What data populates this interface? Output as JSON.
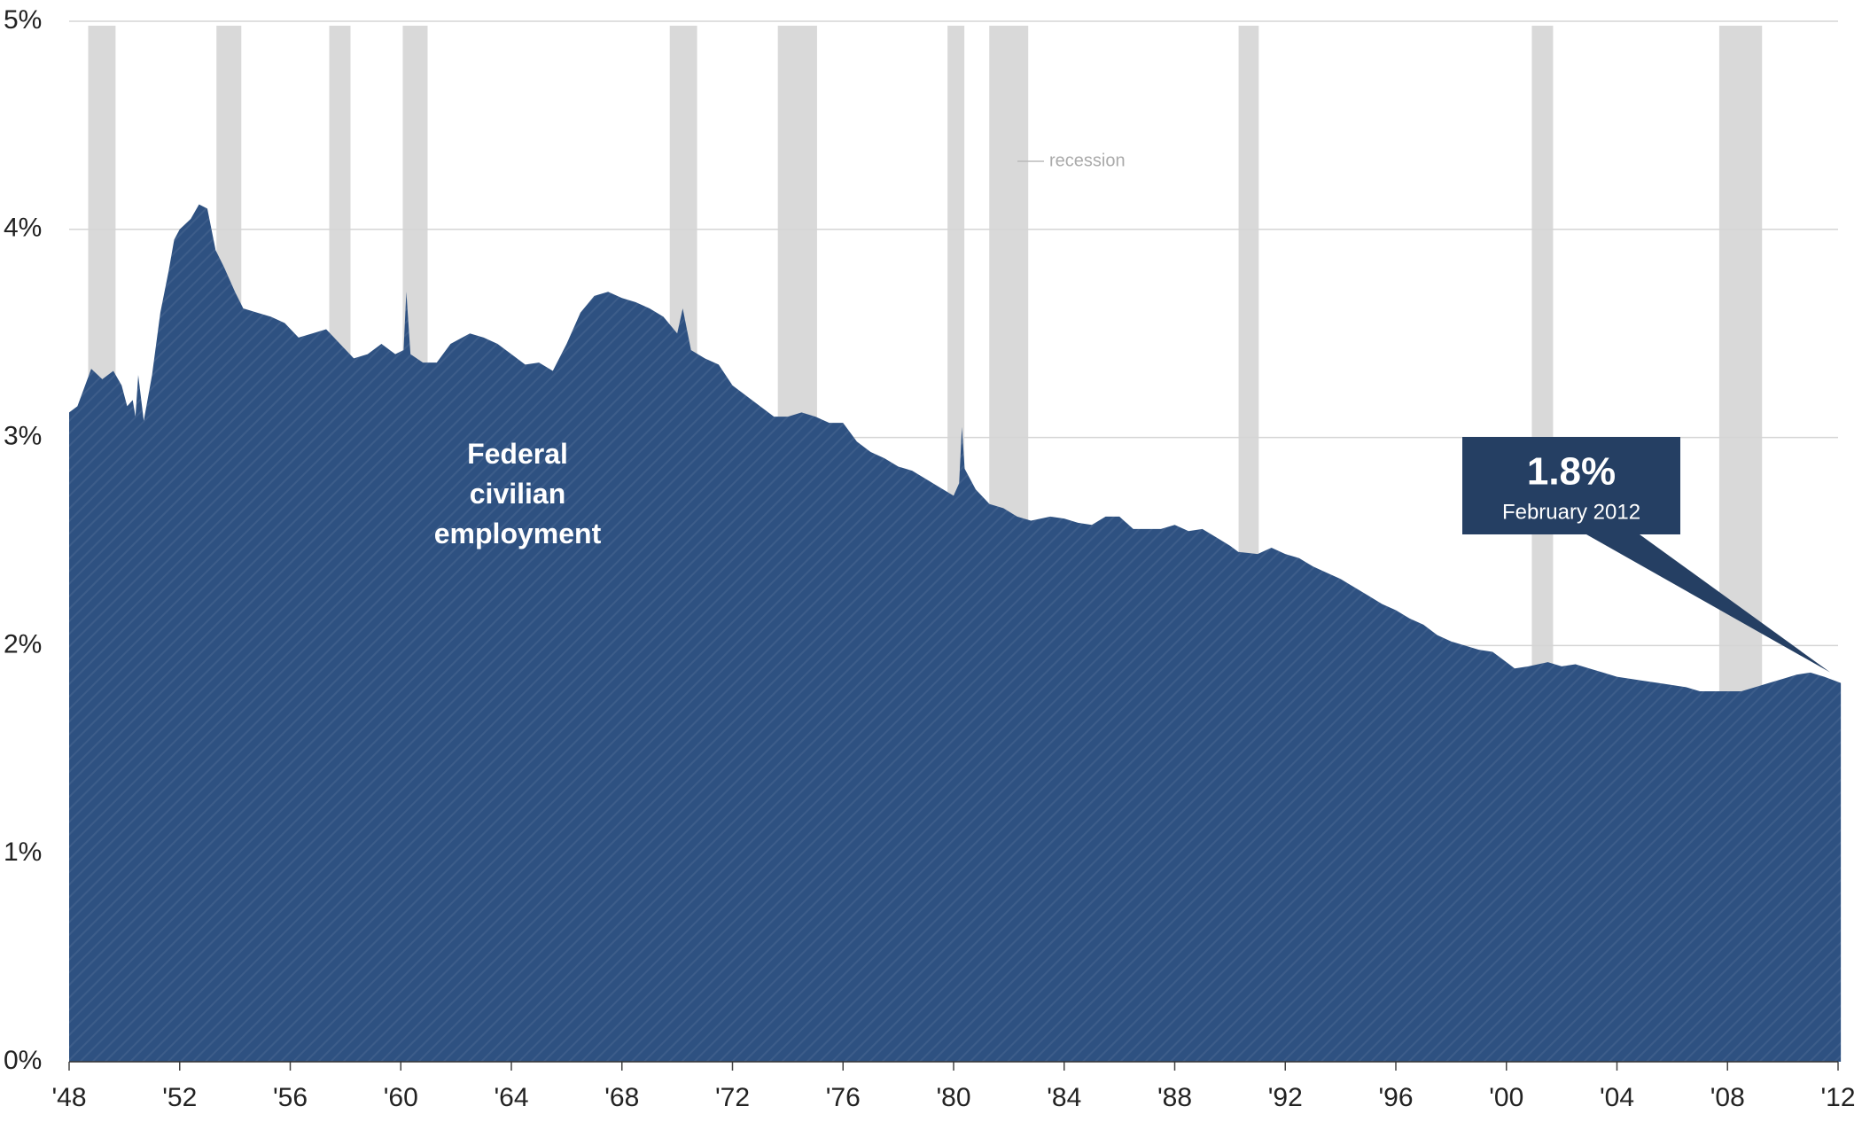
{
  "chart_data": {
    "type": "area",
    "x": [
      1948.0,
      1948.3,
      1948.8,
      1949.2,
      1949.6,
      1949.9,
      1950.1,
      1950.3,
      1950.4,
      1950.5,
      1950.7,
      1951.0,
      1951.3,
      1951.6,
      1951.8,
      1952.0,
      1952.4,
      1952.7,
      1953.0,
      1953.3,
      1953.6,
      1954.0,
      1954.3,
      1954.8,
      1955.3,
      1955.8,
      1956.3,
      1956.8,
      1957.3,
      1957.8,
      1958.3,
      1958.8,
      1959.3,
      1959.8,
      1960.1,
      1960.2,
      1960.35,
      1960.8,
      1961.3,
      1961.8,
      1962.5,
      1963.0,
      1963.5,
      1964.0,
      1964.5,
      1965.0,
      1965.5,
      1966.0,
      1966.5,
      1967.0,
      1967.5,
      1968.0,
      1968.5,
      1969.0,
      1969.5,
      1970.0,
      1970.2,
      1970.5,
      1971.0,
      1971.5,
      1972.0,
      1972.5,
      1973.0,
      1973.5,
      1974.0,
      1974.5,
      1975.0,
      1975.5,
      1976.0,
      1976.5,
      1977.0,
      1977.5,
      1978.0,
      1978.5,
      1979.0,
      1979.5,
      1980.0,
      1980.2,
      1980.3,
      1980.4,
      1980.8,
      1981.3,
      1981.8,
      1982.3,
      1982.8,
      1983.5,
      1984.0,
      1984.5,
      1985.0,
      1985.5,
      1986.0,
      1986.5,
      1987.0,
      1987.5,
      1988.0,
      1988.5,
      1989.0,
      1989.5,
      1990.0,
      1990.3,
      1991.0,
      1991.5,
      1992.0,
      1992.5,
      1993.0,
      1993.5,
      1994.0,
      1994.5,
      1995.0,
      1995.5,
      1996.0,
      1996.5,
      1997.0,
      1997.5,
      1998.0,
      1998.5,
      1999.0,
      1999.5,
      2000.0,
      2000.3,
      2000.8,
      2001.5,
      2002.0,
      2002.5,
      2003.0,
      2003.5,
      2004.0,
      2004.5,
      2005.0,
      2005.5,
      2006.0,
      2006.5,
      2007.0,
      2007.5,
      2008.0,
      2008.5,
      2009.0,
      2009.5,
      2010.0,
      2010.5,
      2011.0,
      2011.5,
      2012.1
    ],
    "series": [
      {
        "name": "Federal civilian employment",
        "color": "#2e5181",
        "values": [
          3.12,
          3.15,
          3.33,
          3.28,
          3.32,
          3.25,
          3.15,
          3.18,
          3.1,
          3.3,
          3.08,
          3.3,
          3.6,
          3.8,
          3.95,
          4.0,
          4.05,
          4.12,
          4.1,
          3.9,
          3.82,
          3.7,
          3.62,
          3.6,
          3.58,
          3.55,
          3.48,
          3.5,
          3.52,
          3.45,
          3.38,
          3.4,
          3.45,
          3.4,
          3.42,
          3.7,
          3.4,
          3.36,
          3.36,
          3.45,
          3.5,
          3.48,
          3.45,
          3.4,
          3.35,
          3.36,
          3.32,
          3.45,
          3.6,
          3.68,
          3.7,
          3.67,
          3.65,
          3.62,
          3.58,
          3.5,
          3.62,
          3.42,
          3.38,
          3.35,
          3.25,
          3.2,
          3.15,
          3.1,
          3.1,
          3.12,
          3.1,
          3.07,
          3.07,
          2.98,
          2.93,
          2.9,
          2.86,
          2.84,
          2.8,
          2.76,
          2.72,
          2.78,
          3.05,
          2.85,
          2.75,
          2.68,
          2.66,
          2.62,
          2.6,
          2.62,
          2.61,
          2.59,
          2.58,
          2.62,
          2.62,
          2.56,
          2.56,
          2.56,
          2.58,
          2.55,
          2.56,
          2.52,
          2.48,
          2.45,
          2.44,
          2.47,
          2.44,
          2.42,
          2.38,
          2.35,
          2.32,
          2.28,
          2.24,
          2.2,
          2.17,
          2.13,
          2.1,
          2.05,
          2.02,
          2.0,
          1.98,
          1.97,
          1.92,
          1.89,
          1.9,
          1.92,
          1.9,
          1.91,
          1.89,
          1.87,
          1.85,
          1.84,
          1.83,
          1.82,
          1.81,
          1.8,
          1.78,
          1.78,
          1.78,
          1.78,
          1.8,
          1.82,
          1.84,
          1.86,
          1.87,
          1.85,
          1.82
        ]
      }
    ],
    "recession_label": "recession",
    "recessions": [
      [
        1948.69,
        1949.68
      ],
      [
        1953.33,
        1954.23
      ],
      [
        1957.41,
        1958.18
      ],
      [
        1960.07,
        1960.97
      ],
      [
        1969.73,
        1970.72
      ],
      [
        1973.64,
        1975.06
      ],
      [
        1979.78,
        1980.39
      ],
      [
        1981.29,
        1982.7
      ],
      [
        1990.31,
        1991.04
      ],
      [
        2000.92,
        2001.69
      ],
      [
        2007.7,
        2009.25
      ]
    ],
    "annotation": {
      "label": "1.8%",
      "date": "February 2012"
    },
    "xlim": [
      1948,
      2012
    ],
    "xticks": [
      {
        "value": 1948,
        "label": "'48"
      },
      {
        "value": 1952,
        "label": "'52"
      },
      {
        "value": 1956,
        "label": "'56"
      },
      {
        "value": 1960,
        "label": "'60"
      },
      {
        "value": 1964,
        "label": "'64"
      },
      {
        "value": 1968,
        "label": "'68"
      },
      {
        "value": 1972,
        "label": "'72"
      },
      {
        "value": 1976,
        "label": "'76"
      },
      {
        "value": 1980,
        "label": "'80"
      },
      {
        "value": 1984,
        "label": "'84"
      },
      {
        "value": 1988,
        "label": "'88"
      },
      {
        "value": 1992,
        "label": "'92"
      },
      {
        "value": 1996,
        "label": "'96"
      },
      {
        "value": 2000,
        "label": "'00"
      },
      {
        "value": 2004,
        "label": "'04"
      },
      {
        "value": 2008,
        "label": "'08"
      },
      {
        "value": 2012,
        "label": "'12"
      }
    ],
    "ylim": [
      0,
      5
    ],
    "yticks": [
      {
        "value": 0,
        "label": "0%"
      },
      {
        "value": 1,
        "label": "1%"
      },
      {
        "value": 2,
        "label": "2%"
      },
      {
        "value": 3,
        "label": "3%"
      },
      {
        "value": 4,
        "label": "4%"
      },
      {
        "value": 5,
        "label": "5%"
      }
    ],
    "grid": true
  }
}
